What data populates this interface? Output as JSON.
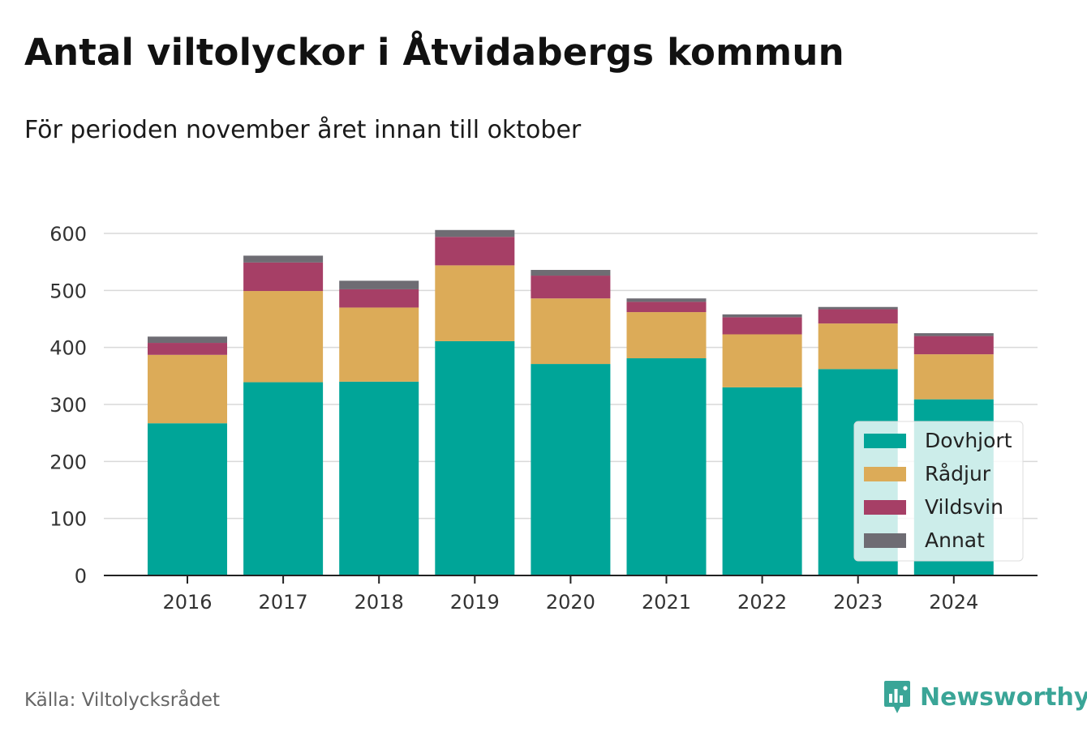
{
  "title": "Antal viltolyckor i Åtvidabergs kommun",
  "subtitle": "För perioden november året innan till oktober",
  "source": "Källa: Viltolycksrådet",
  "brand": "Newsworthy",
  "colors": {
    "Dovhjort": "#00a598",
    "Rådjur": "#dcab58",
    "Vildsvin": "#a63f66",
    "Annat": "#6e6c73",
    "brand": "#3aa597",
    "grid": "#d9d9d9",
    "axis": "#222222"
  },
  "chart_data": {
    "type": "bar",
    "stacked": true,
    "categories": [
      "2016",
      "2017",
      "2018",
      "2019",
      "2020",
      "2021",
      "2022",
      "2023",
      "2024"
    ],
    "series": [
      {
        "name": "Dovhjort",
        "values": [
          267,
          339,
          340,
          411,
          371,
          381,
          330,
          362,
          309
        ]
      },
      {
        "name": "Rådjur",
        "values": [
          120,
          160,
          130,
          133,
          115,
          81,
          93,
          80,
          79
        ]
      },
      {
        "name": "Vildsvin",
        "values": [
          21,
          50,
          32,
          50,
          40,
          18,
          30,
          25,
          32
        ]
      },
      {
        "name": "Annat",
        "values": [
          11,
          12,
          15,
          12,
          10,
          6,
          5,
          4,
          5
        ]
      }
    ],
    "ylim": [
      0,
      600
    ],
    "yticks": [
      0,
      100,
      200,
      300,
      400,
      500,
      600
    ],
    "grid": true,
    "legend_position": "bottom-right"
  }
}
